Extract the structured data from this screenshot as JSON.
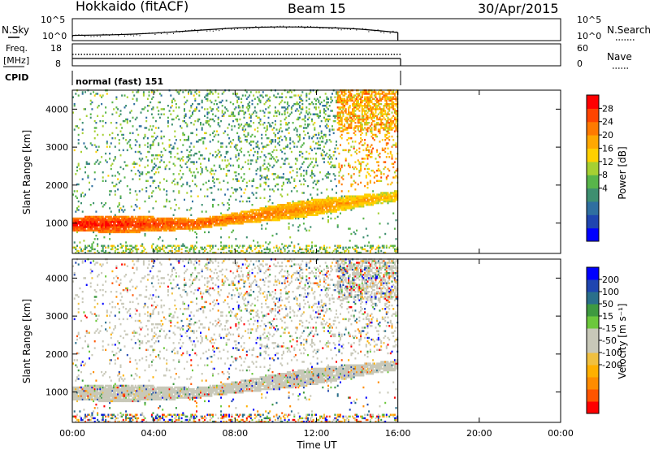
{
  "header": {
    "station": "Hokkaido (fitACF)",
    "beam": "Beam 15",
    "date": "30/Apr/2015"
  },
  "side_labels": {
    "nsky": "N.Sky",
    "freq_line1": "Freq.",
    "freq_line2": "[MHz]",
    "cpid": "CPID",
    "nsearch": "N.Search",
    "nave": "Nave"
  },
  "noise_panel": {
    "left_ticks": [
      "10^5",
      "10^0"
    ],
    "right_ticks": [
      "10^5",
      "10^0"
    ]
  },
  "freq_panel": {
    "left_ticks": [
      "18",
      "8"
    ],
    "right_ticks": [
      "60",
      "0"
    ]
  },
  "cpid_panel": {
    "text": "normal (fast) 151"
  },
  "colorbars": {
    "power": {
      "label": "Power [dB]",
      "ticks": [
        "28",
        "24",
        "20",
        "16",
        "12",
        "8",
        "4"
      ],
      "colors": [
        "#0000ff",
        "#1f45b0",
        "#2f6fa0",
        "#3e8f70",
        "#58b54a",
        "#a6d032",
        "#ffd000",
        "#ffa800",
        "#ff7a00",
        "#ff4400",
        "#ff0000"
      ]
    },
    "velocity": {
      "label": "Velocity [m s⁻¹]",
      "ticks": [
        "200",
        "100",
        "50",
        "15",
        "-15",
        "-50",
        "-100",
        "-200"
      ],
      "colors": [
        "#ff0000",
        "#ff5500",
        "#ff8c00",
        "#ffb000",
        "#f0c040",
        "#c8c8b8",
        "#c8c8b8",
        "#6cc83c",
        "#3e9a40",
        "#2a6f8a",
        "#1f45b0",
        "#0000ff"
      ]
    }
  },
  "chart_data": [
    {
      "type": "heatmap",
      "title": "Power",
      "ylabel": "Slant Range [km]",
      "xlabel": "Time UT",
      "x_ticks": [
        "00:00",
        "04:00",
        "08:00",
        "12:00",
        "16:00",
        "20:00",
        "00:00"
      ],
      "y_ticks": [
        1000,
        2000,
        3000,
        4000
      ],
      "xlim_hours": [
        0,
        24
      ],
      "ylim_km": [
        200,
        4500
      ],
      "data_end_hour": 16,
      "colorbar_label": "Power [dB]",
      "colorbar_ticks": [
        4,
        8,
        12,
        16,
        20,
        24,
        28
      ],
      "main_band_range_km_start_end": [
        950,
        1700
      ],
      "main_band_power_db": [
        30,
        20
      ]
    },
    {
      "type": "heatmap",
      "title": "Velocity",
      "ylabel": "Slant Range [km]",
      "xlabel": "Time UT",
      "x_ticks": [
        "00:00",
        "04:00",
        "08:00",
        "12:00",
        "16:00",
        "20:00",
        "00:00"
      ],
      "y_ticks": [
        1000,
        2000,
        3000,
        4000
      ],
      "xlim_hours": [
        0,
        24
      ],
      "ylim_km": [
        200,
        4500
      ],
      "data_end_hour": 16,
      "colorbar_label": "Velocity [m s⁻¹]",
      "colorbar_ticks": [
        200,
        100,
        50,
        15,
        -15,
        -50,
        -100,
        -200
      ]
    },
    {
      "type": "line",
      "title": "N.Sky",
      "xlim_hours": [
        0,
        24
      ],
      "data_end_hour": 16,
      "series": [
        {
          "name": "N.Sky",
          "log10_values_hourly": [
            1.1,
            1.2,
            1.3,
            1.5,
            1.8,
            2.2,
            2.6,
            3.0,
            3.4,
            3.6,
            3.7,
            3.7,
            3.6,
            3.4,
            3.1,
            2.6,
            2.0
          ]
        }
      ]
    }
  ]
}
